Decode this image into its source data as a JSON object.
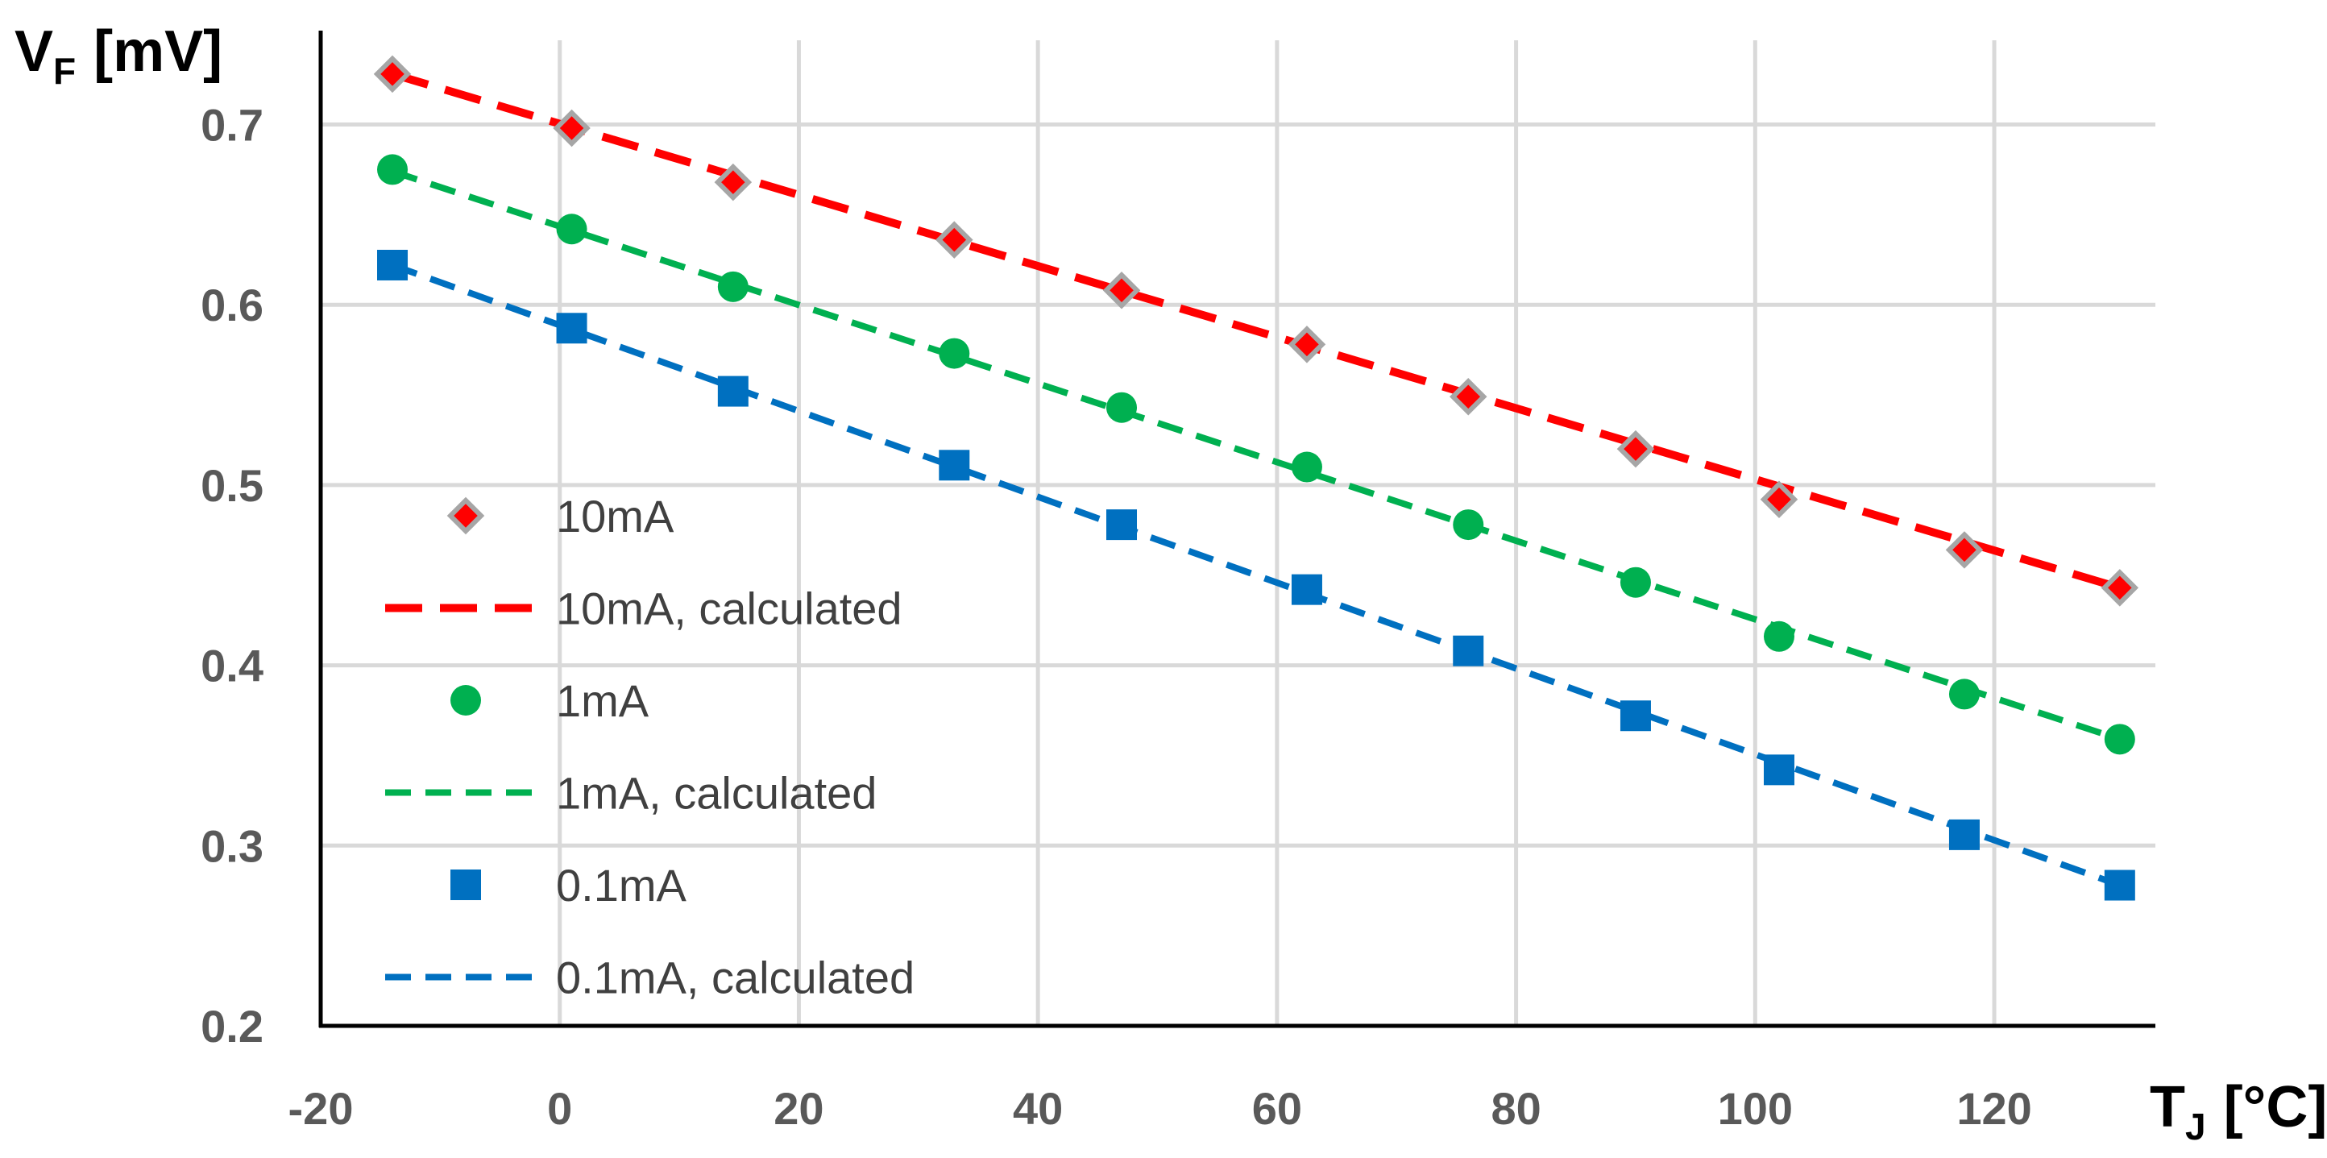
{
  "chart_data": {
    "type": "scatter",
    "title": "",
    "xlabel": {
      "main": "T",
      "sub": "J",
      "unit": "[°C]"
    },
    "ylabel": {
      "main": "V",
      "sub": "F",
      "unit": "[mV]"
    },
    "xlim": [
      -20,
      135
    ],
    "ylim": [
      0.2,
      0.75
    ],
    "x_ticks": [
      -20,
      0,
      20,
      40,
      60,
      80,
      100,
      120
    ],
    "x_tick_labels": [
      "-20",
      "0",
      "20",
      "40",
      "60",
      "80",
      "100",
      "120"
    ],
    "y_ticks": [
      0.2,
      0.3,
      0.4,
      0.5,
      0.6,
      0.7
    ],
    "y_tick_labels": [
      "0.2",
      "0.3",
      "0.4",
      "0.5",
      "0.6",
      "0.7"
    ],
    "grid": true,
    "legend_position": "left",
    "series": [
      {
        "name": "10mA",
        "kind": "marker",
        "marker": "diamond",
        "color": "#ff0000",
        "edge_color": "#a6a6a6",
        "x": [
          -14,
          1,
          14.5,
          33,
          47,
          62.5,
          76,
          90,
          102,
          117.5,
          130.5
        ],
        "y": [
          0.728,
          0.698,
          0.668,
          0.636,
          0.608,
          0.578,
          0.549,
          0.52,
          0.492,
          0.464,
          0.443
        ]
      },
      {
        "name": "10mA, calculated",
        "kind": "line",
        "dash": "long",
        "color": "#ff0000",
        "x": [
          -14,
          130.5
        ],
        "y": [
          0.728,
          0.443
        ]
      },
      {
        "name": "1mA",
        "kind": "marker",
        "marker": "circle",
        "color": "#00b050",
        "x": [
          -14,
          1,
          14.5,
          33,
          47,
          62.5,
          76,
          90,
          102,
          117.5,
          130.5
        ],
        "y": [
          0.675,
          0.642,
          0.61,
          0.573,
          0.543,
          0.51,
          0.478,
          0.446,
          0.416,
          0.384,
          0.359
        ]
      },
      {
        "name": "1mA, calculated",
        "kind": "line",
        "dash": "medium",
        "color": "#00b050",
        "x": [
          -14,
          130.5
        ],
        "y": [
          0.674,
          0.359
        ]
      },
      {
        "name": "0.1mA",
        "kind": "marker",
        "marker": "square",
        "color": "#0070c0",
        "x": [
          -14,
          1,
          14.5,
          33,
          47,
          62.5,
          76,
          90,
          102,
          117.5,
          130.5
        ],
        "y": [
          0.622,
          0.587,
          0.552,
          0.511,
          0.478,
          0.442,
          0.408,
          0.372,
          0.342,
          0.306,
          0.278
        ]
      },
      {
        "name": "0.1mA, calculated",
        "kind": "line",
        "dash": "medium",
        "color": "#0070c0",
        "x": [
          -14,
          130.5
        ],
        "y": [
          0.622,
          0.278
        ]
      }
    ]
  }
}
